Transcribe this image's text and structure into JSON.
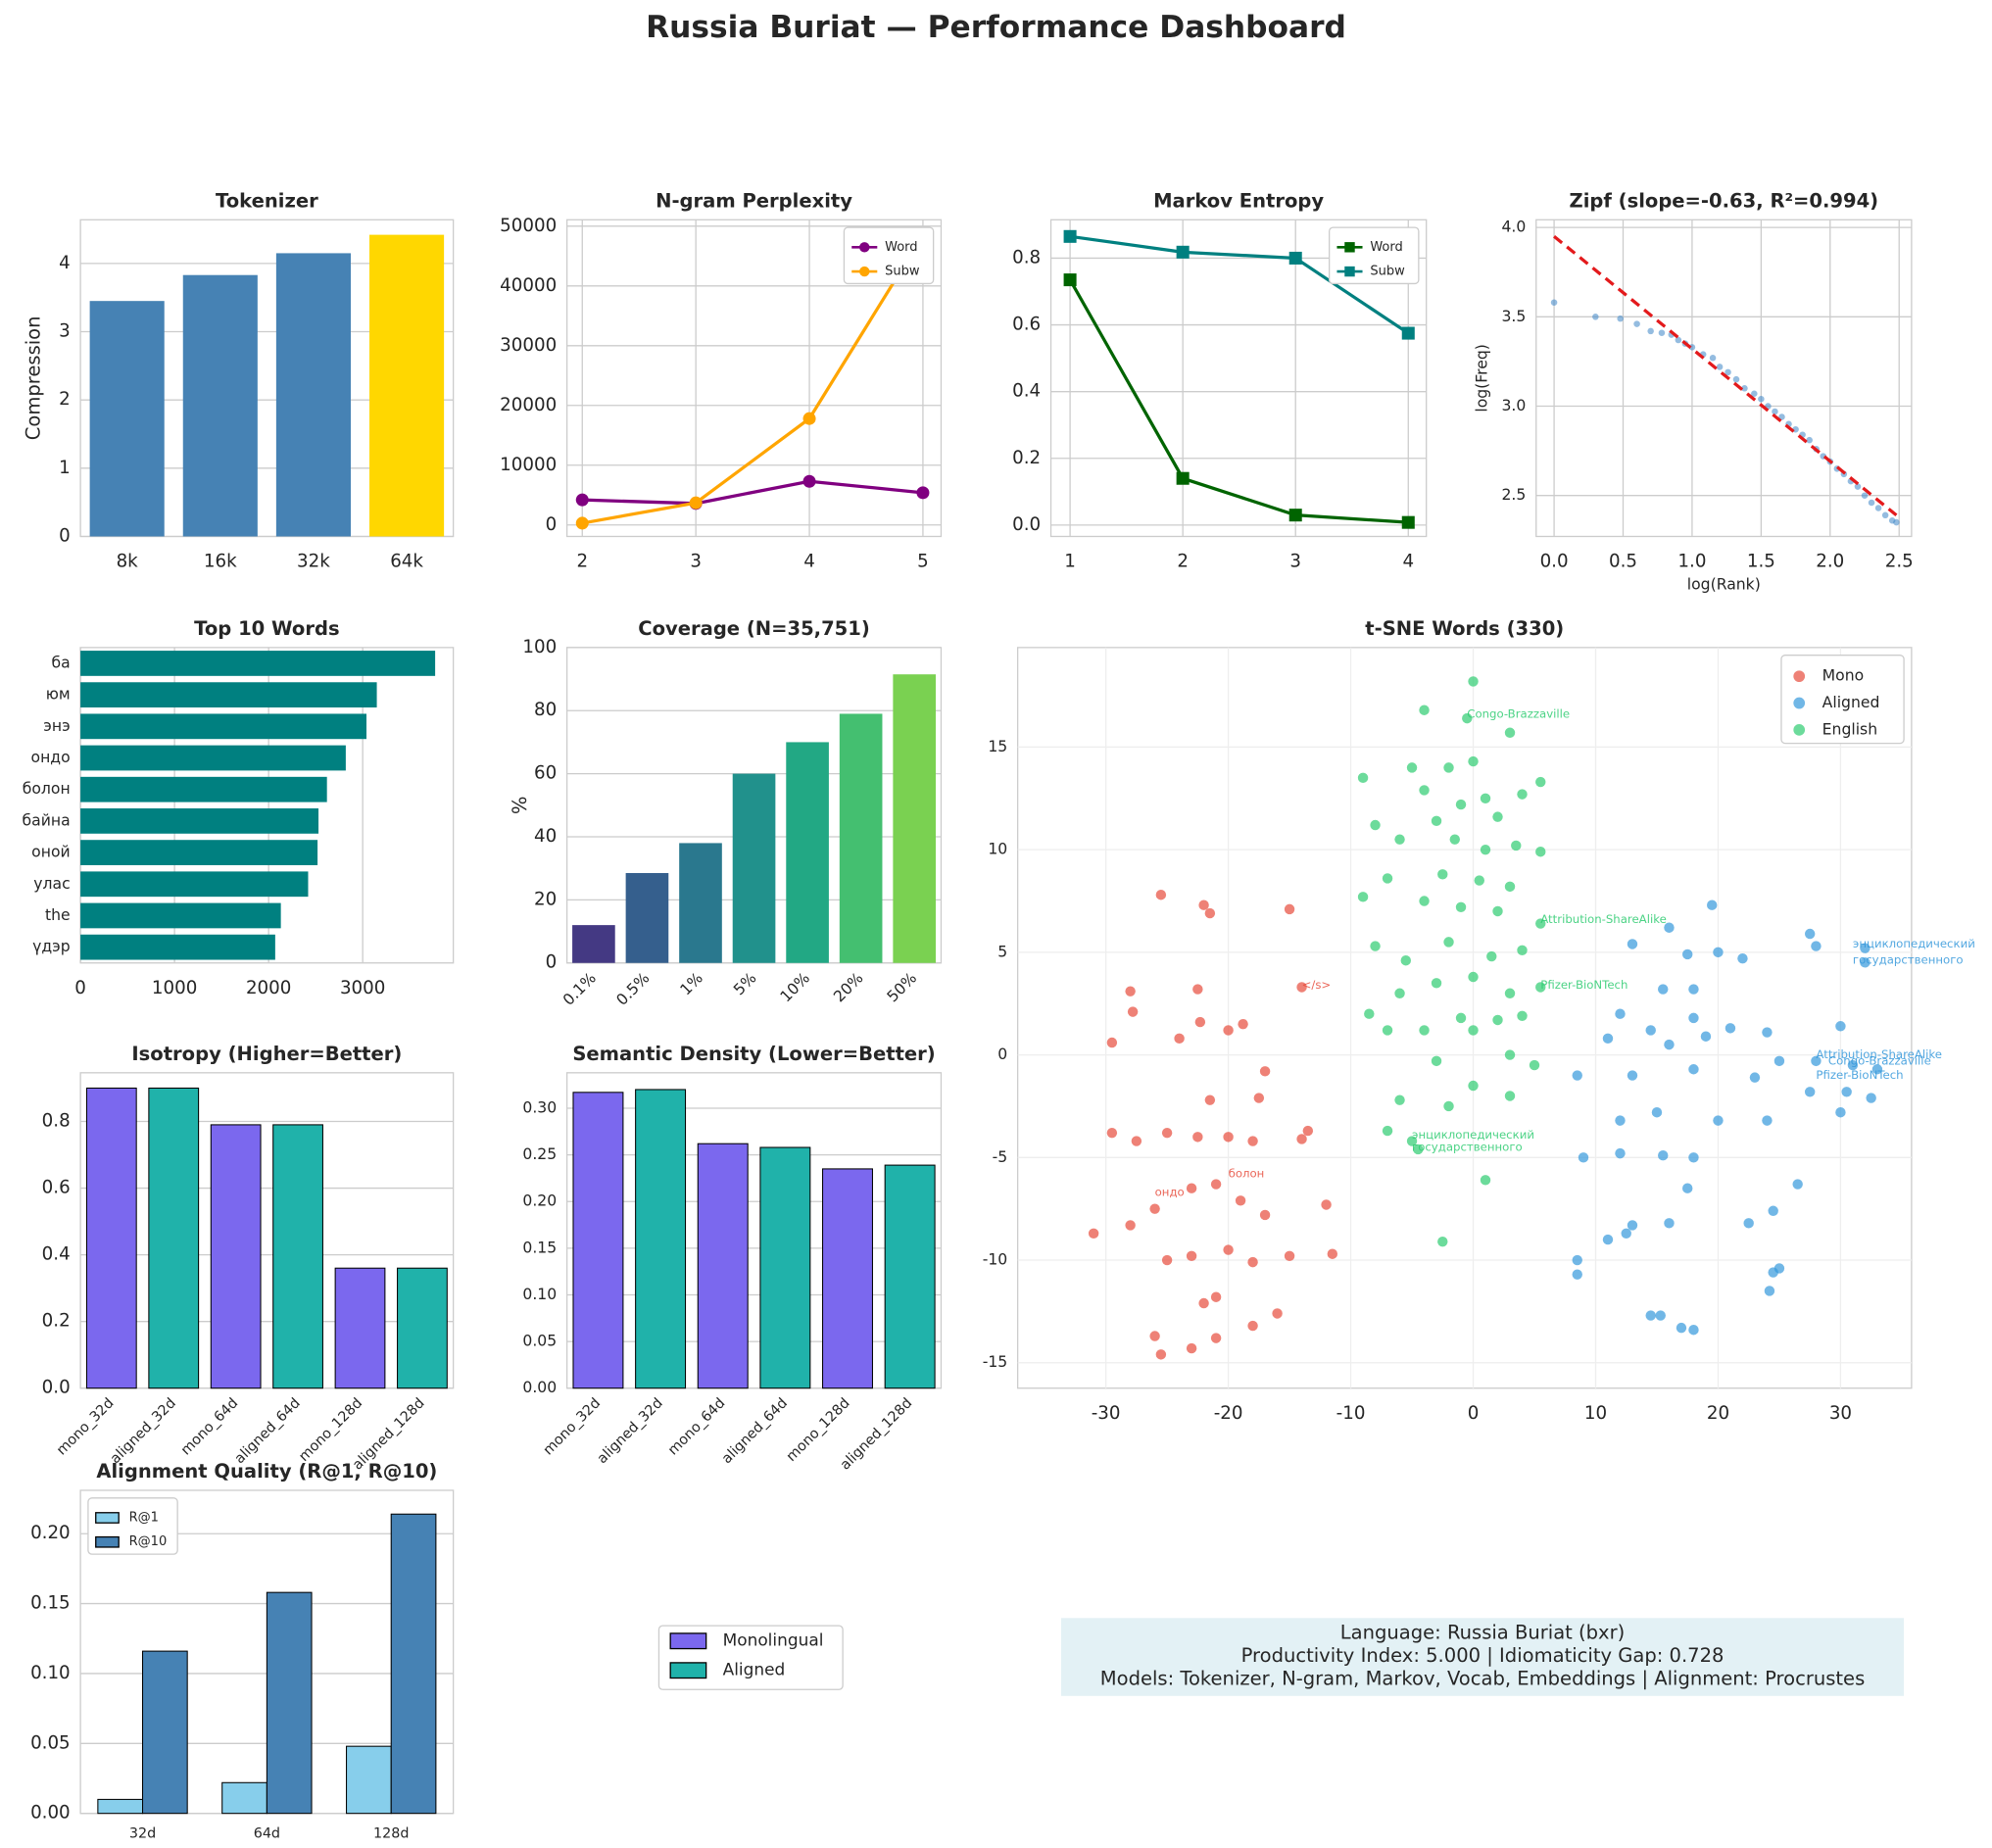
{
  "title": "Russia Buriat — Performance Dashboard",
  "chart_data": [
    {
      "type": "bar",
      "title": "Tokenizer",
      "categories": [
        "8k",
        "16k",
        "32k",
        "64k"
      ],
      "values": [
        3.45,
        3.83,
        4.15,
        4.42
      ],
      "colors": [
        "#4682b4",
        "#4682b4",
        "#4682b4",
        "#ffd700"
      ],
      "ylim": [
        0,
        4.64
      ],
      "yticks": [
        0,
        1,
        2,
        3,
        4
      ],
      "ylabel": "Compression",
      "grid": true
    },
    {
      "type": "line",
      "title": "N-gram Perplexity",
      "x": [
        2,
        3,
        4,
        5
      ],
      "xlim": [
        1.865,
        5.16
      ],
      "xticks": [
        2,
        3,
        4,
        5
      ],
      "ylim": [
        -1920,
        51070
      ],
      "yticks": [
        0,
        10000,
        20000,
        30000,
        40000,
        50000
      ],
      "grid": true,
      "legend": "upper right",
      "series": [
        {
          "name": "Word",
          "color": "#800080",
          "marker": "circle",
          "values": [
            4200,
            3600,
            7300,
            5400
          ]
        },
        {
          "name": "Subw",
          "color": "#ffa500",
          "marker": "circle",
          "values": [
            300,
            3700,
            17800,
            48500
          ]
        }
      ]
    },
    {
      "type": "line",
      "title": "Markov Entropy",
      "x": [
        1,
        2,
        3,
        4
      ],
      "xlim": [
        0.83,
        4.16
      ],
      "xticks": [
        1,
        2,
        3,
        4
      ],
      "ylim": [
        -0.034,
        0.915
      ],
      "yticks": [
        {
          "value": 0,
          "label": "0.0"
        },
        0.2,
        0.4,
        0.6,
        0.8
      ],
      "grid": true,
      "legend": "upper right",
      "series": [
        {
          "name": "Word",
          "color": "#006400",
          "marker": "square",
          "values": [
            0.735,
            0.14,
            0.03,
            0.008
          ]
        },
        {
          "name": "Subw",
          "color": "#008080",
          "marker": "square",
          "values": [
            0.865,
            0.818,
            0.8,
            0.575
          ]
        }
      ]
    },
    {
      "type": "scatter",
      "title": "Zipf (slope=-0.63, R²=0.994)",
      "xlabel": "log(Rank)",
      "ylabel": "log(Freq)",
      "xlim": [
        -0.13,
        2.59
      ],
      "xticks": [
        {
          "value": 0,
          "label": "0.0"
        },
        0.5,
        {
          "value": 1,
          "label": "1.0"
        },
        1.5,
        {
          "value": 2,
          "label": "2.0"
        },
        2.5
      ],
      "ylim": [
        2.271,
        4.043
      ],
      "yticks": [
        2.5,
        {
          "value": 3,
          "label": "3.0"
        },
        3.5,
        {
          "value": 4,
          "label": "4.0"
        }
      ],
      "grid": true,
      "series": [
        {
          "color": "#3d85c6",
          "size": 2.5,
          "x": [
            0,
            0.3,
            0.48,
            0.6,
            0.7,
            0.78,
            0.85,
            0.9,
            0.95,
            1.0,
            1.08,
            1.15,
            1.2,
            1.26,
            1.32,
            1.38,
            1.45,
            1.5,
            1.55,
            1.6,
            1.65,
            1.7,
            1.75,
            1.8,
            1.85,
            1.9,
            1.95,
            2.0,
            2.05,
            2.1,
            2.15,
            2.2,
            2.25,
            2.3,
            2.35,
            2.4,
            2.45,
            2.48
          ],
          "y": [
            3.58,
            3.5,
            3.49,
            3.46,
            3.42,
            3.41,
            3.4,
            3.37,
            3.35,
            3.33,
            3.29,
            3.27,
            3.22,
            3.19,
            3.15,
            3.1,
            3.07,
            3.04,
            3.0,
            2.97,
            2.94,
            2.9,
            2.87,
            2.84,
            2.81,
            2.76,
            2.72,
            2.69,
            2.65,
            2.62,
            2.58,
            2.55,
            2.5,
            2.46,
            2.43,
            2.39,
            2.36,
            2.35
          ]
        },
        {
          "color": "#e31a1c",
          "style": "dashed",
          "x": [
            0,
            2.48
          ],
          "y": [
            3.95,
            2.39
          ]
        }
      ]
    },
    {
      "type": "barh",
      "title": "Top 10 Words",
      "categories": [
        "ба",
        "юм",
        "энэ",
        "ондо",
        "болон",
        "байна",
        "оной",
        "улас",
        "the",
        "үдэр"
      ],
      "values": [
        3770,
        3150,
        3040,
        2820,
        2620,
        2530,
        2520,
        2420,
        2130,
        2070
      ],
      "color": "#008080",
      "xlim": [
        0,
        3963
      ],
      "xticks": [
        0,
        1000,
        2000,
        3000
      ],
      "grid": true
    },
    {
      "type": "bar",
      "title": "Coverage (N=35,751)",
      "categories": [
        "0.1%",
        "0.5%",
        "1%",
        "5%",
        "10%",
        "20%",
        "50%"
      ],
      "values": [
        12,
        28.5,
        38,
        60,
        70,
        79,
        91.5
      ],
      "colors": [
        "#443983",
        "#355f8d",
        "#2a788e",
        "#21918c",
        "#22a884",
        "#44bf70",
        "#7ad151"
      ],
      "ylim": [
        0,
        100
      ],
      "yticks": [
        0,
        20,
        40,
        60,
        80,
        100
      ],
      "ylabel": "%",
      "grid": true,
      "rotate_labels": true
    },
    {
      "type": "scatter",
      "title": "t-SNE Words (330)",
      "xlim": [
        -37.2,
        35.8
      ],
      "xticks": [
        -30,
        -20,
        -10,
        0,
        10,
        20,
        30
      ],
      "ylim": [
        -16.24,
        19.85
      ],
      "yticks": [
        -15,
        -10,
        -5,
        0,
        5,
        10,
        15
      ],
      "grid": true,
      "legend": "upper right",
      "series": [
        {
          "name": "Mono",
          "color": "#e74c3c",
          "size": 4,
          "x": [
            -25.5,
            -22,
            -21.5,
            -15,
            -28,
            -22.5,
            -29.5,
            -27.8,
            -24,
            -22.3,
            -20,
            -18.8,
            -17,
            -14,
            -17.5,
            -21.5,
            -29.5,
            -27.5,
            -25,
            -22.5,
            -20,
            -18,
            -14,
            -13.5,
            -31,
            -28,
            -26,
            -23,
            -21,
            -19,
            -17,
            -15,
            -12,
            -11.5,
            -25,
            -23,
            -20,
            -18,
            -21,
            -16,
            -18,
            -26,
            -25.5,
            -23,
            -21,
            -22
          ],
          "y": [
            7.8,
            7.3,
            6.9,
            7.1,
            3.1,
            3.2,
            0.6,
            2.1,
            0.8,
            1.6,
            1.2,
            1.5,
            -0.8,
            3.3,
            -2.1,
            -2.2,
            -3.8,
            -4.2,
            -3.8,
            -4,
            -4,
            -4.2,
            -4.1,
            -3.7,
            -8.7,
            -8.3,
            -7.5,
            -6.5,
            -6.3,
            -7.1,
            -7.8,
            -9.8,
            -7.3,
            -9.7,
            -10,
            -9.8,
            -9.5,
            -10.1,
            -11.8,
            -12.6,
            -13.2,
            -13.7,
            -14.6,
            -14.3,
            -13.8,
            -12.1
          ]
        },
        {
          "name": "Aligned",
          "color": "#3498db",
          "size": 4,
          "x": [
            19.5,
            27.5,
            32,
            32,
            28,
            16,
            20,
            13,
            17.5,
            22,
            15.5,
            18,
            12,
            14.5,
            18,
            21,
            24,
            30,
            11,
            16,
            19,
            25,
            28,
            31,
            33,
            8.5,
            13,
            18,
            23,
            27.5,
            30.5,
            32.5,
            12,
            15,
            20,
            24,
            30,
            12,
            15.5,
            18,
            9,
            26.5,
            17.5,
            16,
            13,
            22.5,
            24.5,
            11,
            8.5,
            8.5,
            12.5,
            24.5,
            25,
            24.2,
            14.5,
            15.3,
            17,
            18
          ],
          "y": [
            7.3,
            5.9,
            5.2,
            4.5,
            5.3,
            6.2,
            5,
            5.4,
            4.9,
            4.7,
            3.2,
            3.2,
            2,
            1.2,
            1.8,
            1.3,
            1.1,
            1.4,
            0.8,
            0.5,
            0.9,
            -0.3,
            -0.3,
            -0.5,
            -0.7,
            -1,
            -1,
            -0.7,
            -1.1,
            -1.8,
            -1.8,
            -2.1,
            -3.2,
            -2.8,
            -3.2,
            -3.2,
            -2.8,
            -4.8,
            -4.9,
            -5,
            -5,
            -6.3,
            -6.5,
            -8.2,
            -8.3,
            -8.2,
            -7.6,
            -9,
            -10,
            -10.7,
            -8.7,
            -10.6,
            -10.4,
            -11.5,
            -12.7,
            -12.7,
            -13.3,
            -13.4
          ]
        },
        {
          "name": "English",
          "color": "#2ecc71",
          "size": 4,
          "x": [
            0,
            -4,
            -0.5,
            3,
            5.5,
            -2,
            -9,
            0,
            -5,
            -4,
            1,
            4,
            -1,
            -8,
            -3,
            2,
            3.5,
            -6,
            -1.5,
            1,
            5.5,
            -7,
            -2.5,
            0.5,
            3,
            -9,
            -4,
            -1,
            2,
            5.5,
            -8,
            -5.5,
            -2,
            1.5,
            4,
            -6,
            -3,
            0,
            3,
            5.5,
            -8.5,
            -4,
            -1,
            2,
            4,
            -7,
            -3,
            0,
            3,
            5,
            -6,
            -2,
            0,
            3,
            -7,
            -5,
            -4.5,
            -2.5,
            1
          ],
          "y": [
            18.2,
            16.8,
            16.4,
            15.7,
            13.3,
            14,
            13.5,
            14.3,
            14,
            12.9,
            12.5,
            12.7,
            12.2,
            11.2,
            11.4,
            11.6,
            10.2,
            10.5,
            10.5,
            10,
            9.9,
            8.6,
            8.8,
            8.5,
            8.2,
            7.7,
            7.5,
            7.2,
            7,
            6.4,
            5.3,
            4.6,
            5.5,
            4.8,
            5.1,
            3,
            3.5,
            3.8,
            3,
            3.3,
            2,
            1.2,
            1.8,
            1.7,
            1.9,
            1.2,
            -0.3,
            1.2,
            0,
            -0.5,
            -2.2,
            -2.5,
            -1.5,
            -2,
            -3.7,
            -4.2,
            -4.6,
            -9.1,
            -6.1
          ]
        }
      ],
      "annotations": [
        {
          "text": "Congo-Brazzaville",
          "x": -0.5,
          "y": 16.6,
          "color": "#2ecc71"
        },
        {
          "text": "Attribution-ShareAlike",
          "x": 5.5,
          "y": 6.6,
          "color": "#2ecc71"
        },
        {
          "text": "Pfizer-BioNTech",
          "x": 5.5,
          "y": 3.4,
          "color": "#2ecc71"
        },
        {
          "text": "энциклопедический",
          "x": -5,
          "y": -3.9,
          "color": "#2ecc71"
        },
        {
          "text": "государственного",
          "x": -5,
          "y": -4.5,
          "color": "#2ecc71"
        },
        {
          "text": "энциклопедический",
          "x": 31,
          "y": 5.4,
          "color": "#3498db"
        },
        {
          "text": "государственного",
          "x": 31,
          "y": 4.6,
          "color": "#3498db"
        },
        {
          "text": "Attribution-ShareAlike",
          "x": 28,
          "y": 0,
          "color": "#3498db"
        },
        {
          "text": "Congo-Brazzaville",
          "x": 29,
          "y": -0.3,
          "color": "#3498db"
        },
        {
          "text": "Pfizer-BioNTech",
          "x": 28,
          "y": -1,
          "color": "#3498db"
        },
        {
          "text": "</s>",
          "x": -14,
          "y": 3.4,
          "color": "#e74c3c"
        },
        {
          "text": "ондо",
          "x": -26,
          "y": -6.7,
          "color": "#e74c3c"
        },
        {
          "text": "болон",
          "x": -20,
          "y": -5.8,
          "color": "#e74c3c"
        }
      ]
    },
    {
      "type": "bar",
      "title": "Isotropy (Higher=Better)",
      "categories": [
        "mono_32d",
        "aligned_32d",
        "mono_64d",
        "aligned_64d",
        "mono_128d",
        "aligned_128d"
      ],
      "values": [
        0.9,
        0.9,
        0.79,
        0.79,
        0.36,
        0.36
      ],
      "colors": [
        "#7b68ee",
        "#20b2aa",
        "#7b68ee",
        "#20b2aa",
        "#7b68ee",
        "#20b2aa"
      ],
      "edgecolor": "#000",
      "ylim": [
        0,
        0.946
      ],
      "yticks": [
        {
          "value": 0,
          "label": "0.0"
        },
        0.2,
        0.4,
        0.6,
        0.8
      ],
      "grid": true,
      "rotate_labels": true
    },
    {
      "type": "bar",
      "title": "Semantic Density (Lower=Better)",
      "categories": [
        "mono_32d",
        "aligned_32d",
        "mono_64d",
        "aligned_64d",
        "mono_128d",
        "aligned_128d"
      ],
      "values": [
        0.317,
        0.32,
        0.262,
        0.258,
        0.235,
        0.239
      ],
      "colors": [
        "#7b68ee",
        "#20b2aa",
        "#7b68ee",
        "#20b2aa",
        "#7b68ee",
        "#20b2aa"
      ],
      "edgecolor": "#000",
      "ylim": [
        0,
        0.338
      ],
      "yticks": [
        {
          "value": 0,
          "label": "0.00"
        },
        0.05,
        {
          "value": 0.1,
          "label": "0.10"
        },
        0.15,
        {
          "value": 0.2,
          "label": "0.20"
        },
        0.25,
        {
          "value": 0.3,
          "label": "0.30"
        }
      ],
      "grid": true,
      "rotate_labels": true
    },
    {
      "type": "bar",
      "title": "Alignment Quality (R@1, R@10)",
      "categories": [
        "32d",
        "64d",
        "128d"
      ],
      "edgecolor": "#000",
      "legend": "upper left",
      "series": [
        {
          "name": "R@1",
          "color": "#87ceeb",
          "values": [
            0.01,
            0.022,
            0.048
          ]
        },
        {
          "name": "R@10",
          "color": "#4682b4",
          "values": [
            0.116,
            0.158,
            0.214
          ]
        }
      ],
      "ylim": [
        0,
        0.231
      ],
      "yticks": [
        {
          "value": 0,
          "label": "0.00"
        },
        0.05,
        {
          "value": 0.1,
          "label": "0.10"
        },
        0.15,
        {
          "value": 0.2,
          "label": "0.20"
        }
      ],
      "grid": true,
      "small_labels": true
    }
  ],
  "legend": [
    {
      "name": "Monolingual",
      "color": "#7b68ee"
    },
    {
      "name": "Aligned",
      "color": "#20b2aa"
    }
  ],
  "info": [
    "Language: Russia Buriat (bxr)",
    "Productivity Index: 5.000  |  Idiomaticity Gap: 0.728",
    "Models: Tokenizer, N-gram, Markov, Vocab, Embeddings  |  Alignment: Procrustes"
  ]
}
